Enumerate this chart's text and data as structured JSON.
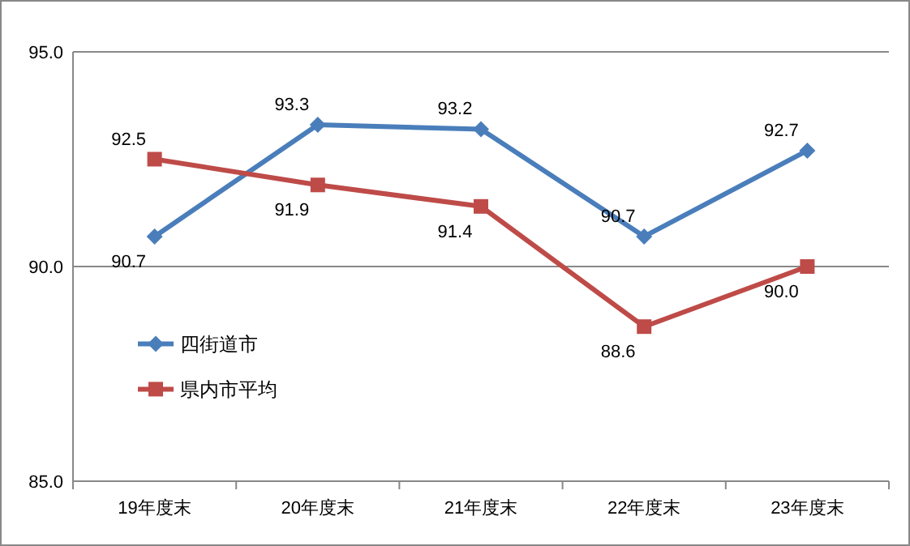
{
  "chart_data": {
    "type": "line",
    "categories": [
      "19年度末",
      "20年度末",
      "21年度末",
      "22年度末",
      "23年度末"
    ],
    "series": [
      {
        "name": "四街道市",
        "color": "#4a7ebb",
        "marker": "diamond",
        "values": [
          90.7,
          93.3,
          93.2,
          90.7,
          92.7
        ],
        "value_labels": [
          "90.7",
          "93.3",
          "93.2",
          "90.7",
          "92.7"
        ]
      },
      {
        "name": "県内市平均",
        "color": "#be4b48",
        "marker": "square",
        "values": [
          92.5,
          91.9,
          91.4,
          88.6,
          90.0
        ],
        "value_labels": [
          "92.5",
          "91.9",
          "91.4",
          "88.6",
          "90.0"
        ]
      }
    ],
    "ylim": [
      85,
      95
    ],
    "yticks": [
      {
        "value": 85,
        "label": "85.0"
      },
      {
        "value": 90,
        "label": "90.0"
      },
      {
        "value": 95,
        "label": "95.0"
      }
    ],
    "grid": "y",
    "legend": "bottom left"
  }
}
